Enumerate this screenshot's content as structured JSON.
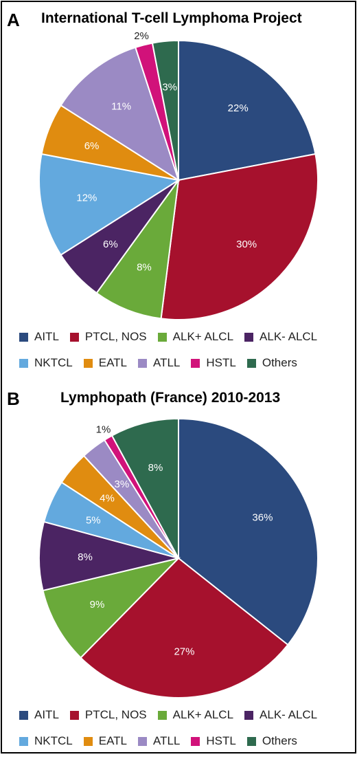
{
  "chart_data": [
    {
      "type": "pie",
      "panel": "A",
      "title": "International T-cell Lymphoma Project",
      "categories": [
        "AITL",
        "PTCL, NOS",
        "ALK+ ALCL",
        "ALK- ALCL",
        "NKTCL",
        "EATL",
        "ATLL",
        "HSTL",
        "Others"
      ],
      "values": [
        22,
        30,
        8,
        6,
        12,
        6,
        11,
        2,
        3
      ],
      "labels": [
        "22%",
        "30%",
        "8%",
        "6%",
        "12%",
        "6%",
        "11%",
        "2%",
        "3%"
      ],
      "colors": [
        "#2b4a7e",
        "#a6112d",
        "#6aaa3a",
        "#4b2463",
        "#63a9de",
        "#e08c10",
        "#9b8ac4",
        "#d1127a",
        "#2e6a4e"
      ],
      "legend_position": "bottom"
    },
    {
      "type": "pie",
      "panel": "B",
      "title": "Lymphopath (France) 2010-2013",
      "categories": [
        "AITL",
        "PTCL, NOS",
        "ALK+ ALCL",
        "ALK- ALCL",
        "NKTCL",
        "EATL",
        "ATLL",
        "HSTL",
        "Others"
      ],
      "values": [
        36,
        27,
        9,
        8,
        5,
        4,
        3,
        1,
        8
      ],
      "labels": [
        "36%",
        "27%",
        "9%",
        "8%",
        "5%",
        "4%",
        "3%",
        "1%",
        "8%"
      ],
      "colors": [
        "#2b4a7e",
        "#a6112d",
        "#6aaa3a",
        "#4b2463",
        "#63a9de",
        "#e08c10",
        "#9b8ac4",
        "#d1127a",
        "#2e6a4e"
      ],
      "legend_position": "bottom"
    }
  ]
}
